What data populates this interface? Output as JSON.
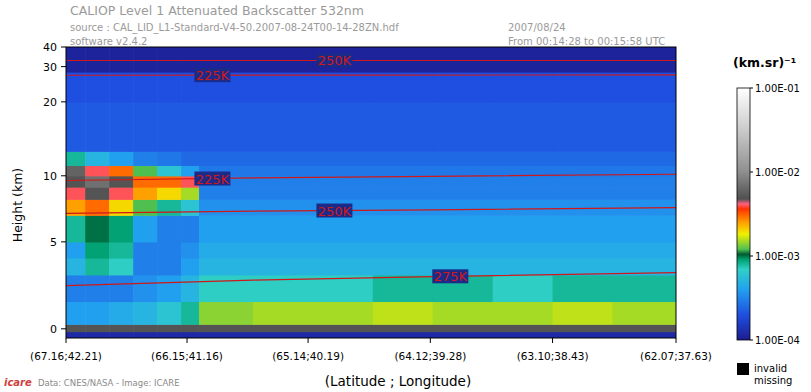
{
  "chart_data": {
    "type": "heatmap",
    "title": "CALIOP Level 1 Attenuated Backscatter 532nm",
    "subtitle": "source : CAL_LID_L1-Standard-V4-50.2007-08-24T00-14-28ZN.hdf",
    "annotations": [
      "software v2.4.2",
      "2007/08/24",
      "From 00:14:28 to 00:15:58 UTC",
      "Data: CNES/NASA - Image: ICARE",
      "icare",
      "invalid",
      "missing"
    ],
    "x_label": "(Latitude ; Longitude)",
    "y_label": "Height (km)",
    "xlim": [
      67.16,
      62.07
    ],
    "xticks": [
      {
        "value": 67.16,
        "label": "(67.16;42.21)"
      },
      {
        "value": 66.15,
        "label": "(66.15;41.16)"
      },
      {
        "value": 65.14,
        "label": "(65.14;40.19)"
      },
      {
        "value": 64.12,
        "label": "(64.12;39.28)"
      },
      {
        "value": 63.1,
        "label": "(63.10;38.43)"
      },
      {
        "value": 62.07,
        "label": "(62.07;37.63)"
      }
    ],
    "ylim": [
      -0.5,
      40
    ],
    "yticks": [
      0,
      5,
      10,
      20,
      30,
      40
    ],
    "x_edges": [
      67.16,
      67.0,
      66.8,
      66.6,
      66.4,
      66.2,
      66.05,
      65.6,
      65.1,
      64.6,
      64.1,
      63.6,
      63.1,
      62.6,
      62.07
    ],
    "y_edges": [
      -0.5,
      -0.15,
      0.25,
      1.5,
      3,
      4,
      5,
      6.8,
      8,
      9,
      10,
      11,
      12.5,
      20,
      28,
      40
    ],
    "values": [
      [
        0.00012,
        0.00012,
        0.00012,
        0.00012,
        0.00012,
        0.00012,
        0.00012,
        0.00012,
        0.00012,
        0.00012,
        0.00012,
        0.00012,
        0.00012,
        0.00012
      ],
      [
        0.005,
        0.005,
        0.005,
        0.005,
        0.005,
        0.005,
        0.005,
        0.005,
        0.005,
        0.005,
        0.005,
        0.005,
        0.005,
        0.005
      ],
      [
        0.0004,
        0.0004,
        0.00045,
        0.0005,
        0.0006,
        0.0008,
        0.0014,
        0.0015,
        0.0015,
        0.0016,
        0.0015,
        0.0015,
        0.0016,
        0.0015
      ],
      [
        0.0003,
        0.0003,
        0.0003,
        0.00035,
        0.0004,
        0.0005,
        0.0007,
        0.0007,
        0.0007,
        0.0008,
        0.0008,
        0.0007,
        0.0008,
        0.0008
      ],
      [
        0.0005,
        0.0008,
        0.0007,
        0.0003,
        0.0003,
        0.0004,
        0.0005,
        0.0005,
        0.0005,
        0.0005,
        0.0005,
        0.0005,
        0.0005,
        0.0005
      ],
      [
        0.0004,
        0.0009,
        0.0008,
        0.0003,
        0.0003,
        0.00035,
        0.00045,
        0.00045,
        0.00045,
        0.00045,
        0.00045,
        0.00045,
        0.00045,
        0.00045
      ],
      [
        0.0008,
        0.001,
        0.0009,
        0.0004,
        0.0003,
        0.0003,
        0.0004,
        0.0004,
        0.0004,
        0.0004,
        0.0004,
        0.0004,
        0.0004,
        0.0004
      ],
      [
        0.0025,
        0.003,
        0.002,
        0.0012,
        0.0008,
        0.0006,
        0.00035,
        0.00035,
        0.00035,
        0.00035,
        0.00035,
        0.00035,
        0.00035,
        0.00035
      ],
      [
        0.004,
        0.005,
        0.004,
        0.0025,
        0.002,
        0.0015,
        0.0003,
        0.0003,
        0.0003,
        0.0003,
        0.0003,
        0.0003,
        0.0003,
        0.0003
      ],
      [
        0.005,
        0.007,
        0.005,
        0.003,
        0.003,
        0.004,
        0.0003,
        0.0003,
        0.0003,
        0.0003,
        0.0003,
        0.0003,
        0.0003,
        0.0003
      ],
      [
        0.006,
        0.004,
        0.003,
        0.0012,
        0.0006,
        0.0004,
        0.00028,
        0.00028,
        0.00028,
        0.00028,
        0.00028,
        0.00028,
        0.00028,
        0.00028
      ],
      [
        0.0008,
        0.0005,
        0.0004,
        0.0003,
        0.00028,
        0.00025,
        0.00025,
        0.00025,
        0.00025,
        0.00025,
        0.00025,
        0.00025,
        0.00025,
        0.00025
      ],
      [
        0.00022,
        0.00022,
        0.00022,
        0.00022,
        0.00022,
        0.00022,
        0.00022,
        0.00022,
        0.00022,
        0.00022,
        0.00022,
        0.00022,
        0.00022,
        0.00022
      ],
      [
        0.0002,
        0.0002,
        0.0002,
        0.0002,
        0.0002,
        0.0002,
        0.0002,
        0.0002,
        0.0002,
        0.0002,
        0.0002,
        0.0002,
        0.0002,
        0.0002
      ],
      [
        0.00011,
        0.00011,
        0.00011,
        0.00011,
        0.00011,
        0.00011,
        0.00011,
        0.00011,
        0.00011,
        0.00011,
        0.00011,
        0.00011,
        0.00011,
        0.00011
      ]
    ],
    "colorbar": {
      "label": "(km.sr)⁻¹",
      "range": [
        0.0001,
        0.1
      ],
      "ticks": [
        {
          "value": 0.1,
          "label": "1.00E-01"
        },
        {
          "value": 0.01,
          "label": "1.00E-02"
        },
        {
          "value": 0.001,
          "label": "1.00E-03"
        },
        {
          "value": 0.0001,
          "label": "1.00E-04"
        }
      ]
    },
    "series": [
      {
        "name": "250K",
        "type": "line",
        "color": "#d01818",
        "x": [
          67.16,
          64.6,
          62.07
        ],
        "values": [
          32.6,
          32.6,
          32.6
        ]
      },
      {
        "name": "225K",
        "type": "line",
        "color": "#d01818",
        "x": [
          67.16,
          64.6,
          62.07
        ],
        "values": [
          26.9,
          26.95,
          27.0
        ]
      },
      {
        "name": "225K",
        "type": "line",
        "color": "#d01818",
        "x": [
          67.16,
          65.6,
          64.1,
          62.07
        ],
        "values": [
          9.57,
          9.8,
          9.95,
          10.14
        ]
      },
      {
        "name": "250K",
        "type": "line",
        "color": "#d01818",
        "x": [
          67.16,
          65.6,
          64.1,
          62.07
        ],
        "values": [
          6.93,
          7.1,
          7.2,
          7.36
        ]
      },
      {
        "name": "275K",
        "type": "line",
        "color": "#d01818",
        "x": [
          67.16,
          65.6,
          64.1,
          62.07
        ],
        "values": [
          2.38,
          2.7,
          2.9,
          3.13
        ]
      }
    ]
  }
}
